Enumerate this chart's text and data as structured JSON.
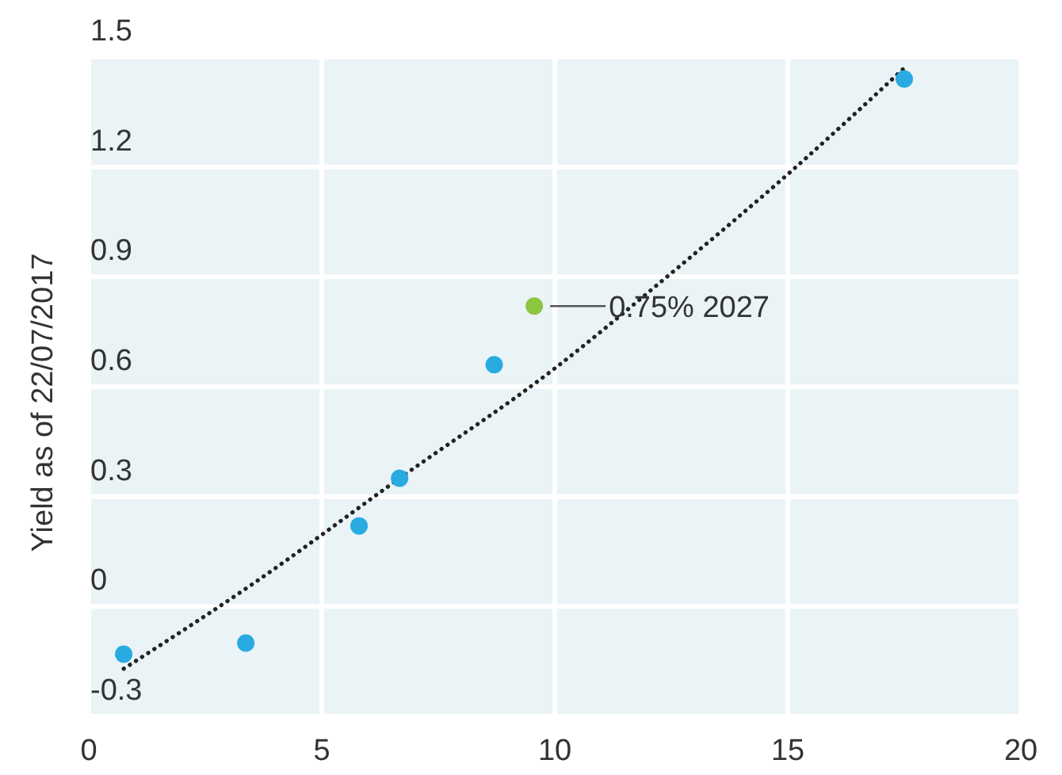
{
  "chart_data": {
    "type": "scatter",
    "ylabel": "Yield as of 22/07/2017",
    "xlim": [
      0,
      20
    ],
    "xticks": [
      0,
      5,
      10,
      15,
      20
    ],
    "ylim": [
      -0.3,
      1.5
    ],
    "yticks": [
      -0.3,
      0,
      0.3,
      0.6,
      0.9,
      1.2,
      1.5
    ],
    "grid": true,
    "marker": "circle",
    "series": [
      {
        "color": "#29abe2",
        "x": [
          0.75,
          3.37,
          5.8,
          6.67,
          8.7,
          17.5
        ],
        "values": [
          -0.13,
          -0.1,
          0.22,
          0.35,
          0.66,
          1.44
        ]
      },
      {
        "color": "#8dc63f",
        "x": [
          9.56
        ],
        "values": [
          0.82
        ]
      },
      {
        "type": "line",
        "color": "#222222",
        "line_style": "dotted",
        "marker": "none",
        "x": [
          0.75,
          3.5,
          6.67,
          10,
          12.5,
          15,
          17.5
        ],
        "values": [
          -0.17,
          0.06,
          0.35,
          0.65,
          0.91,
          1.18,
          1.47
        ]
      }
    ],
    "annotations": [
      {
        "text": "0.75% 2027",
        "x": 9.56,
        "y": 0.82
      }
    ]
  }
}
